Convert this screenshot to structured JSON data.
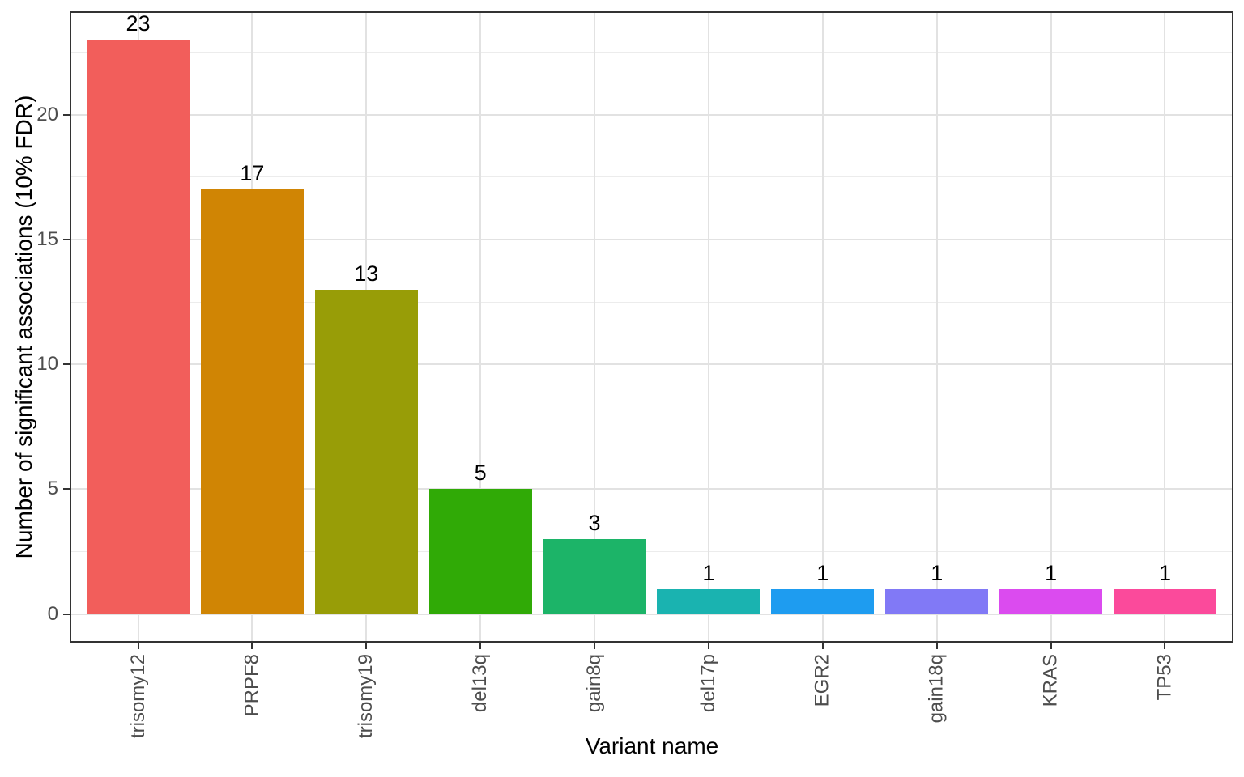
{
  "chart_data": {
    "type": "bar",
    "title": "",
    "xlabel": "Variant name",
    "ylabel": "Number of significant associations (10% FDR)",
    "categories": [
      "trisomy12",
      "PRPF8",
      "trisomy19",
      "del13q",
      "gain8q",
      "del17p",
      "EGR2",
      "gain18q",
      "KRAS",
      "TP53"
    ],
    "values": [
      23,
      17,
      13,
      5,
      3,
      1,
      1,
      1,
      1,
      1
    ],
    "bar_labels": [
      "23",
      "17",
      "13",
      "5",
      "3",
      "1",
      "1",
      "1",
      "1",
      "1"
    ],
    "bar_colors": [
      "#F25E5B",
      "#D08504",
      "#989D07",
      "#30AA06",
      "#1CB468",
      "#1AB3B0",
      "#1E9CF0",
      "#8179F6",
      "#DB4BEF",
      "#FB4A9B"
    ],
    "ylim": [
      0,
      23
    ],
    "yticks": [
      0,
      5,
      10,
      15,
      20
    ],
    "ytick_labels": [
      "0",
      "5",
      "10",
      "15",
      "20"
    ],
    "yticks_minor": [
      2.5,
      7.5,
      12.5,
      17.5,
      22.5
    ],
    "grid": "on",
    "legend": "none"
  },
  "styles": {
    "background": "#FFFFFF",
    "panel_border": "#333333",
    "grid_major": "#E2E2E2",
    "grid_minor": "#ECECEC",
    "tick_color": "#333333",
    "axis_text_color": "#4D4D4D",
    "axis_title_color": "#000000",
    "value_label_color": "#000000"
  }
}
